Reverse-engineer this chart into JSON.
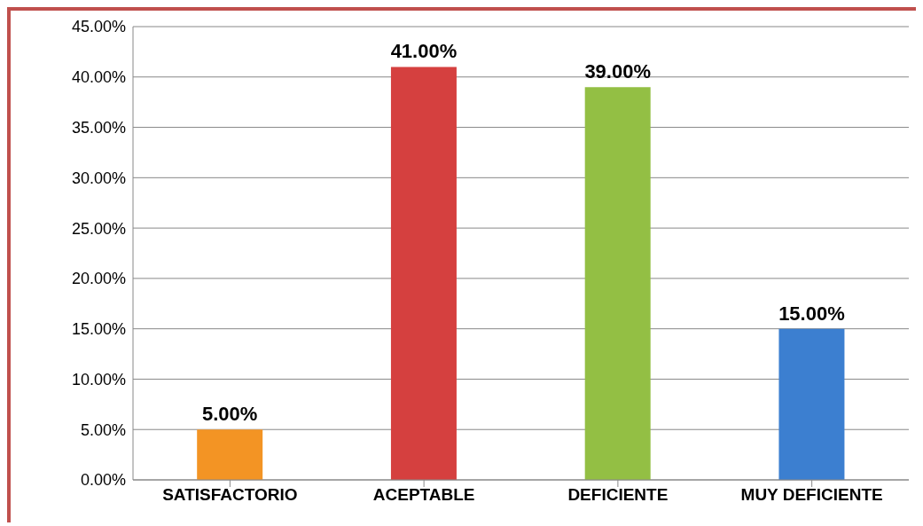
{
  "chart_data": {
    "type": "bar",
    "categories": [
      "SATISFACTORIO",
      "ACEPTABLE",
      "DEFICIENTE",
      "MUY DEFICIENTE"
    ],
    "values": [
      5,
      41,
      39,
      15
    ],
    "colors": [
      "#f39424",
      "#d5403f",
      "#93bf44",
      "#3c7fd0"
    ],
    "value_labels": [
      "5.00%",
      "41.00%",
      "39.00%",
      "15.00%"
    ],
    "ylim": [
      0,
      45
    ],
    "yticks": [
      {
        "value": 0,
        "label": "0.00%"
      },
      {
        "value": 5,
        "label": "5.00%"
      },
      {
        "value": 10,
        "label": "10.00%"
      },
      {
        "value": 15,
        "label": "15.00%"
      },
      {
        "value": 20,
        "label": "20.00%"
      },
      {
        "value": 25,
        "label": "25.00%"
      },
      {
        "value": 30,
        "label": "30.00%"
      },
      {
        "value": 35,
        "label": "35.00%"
      },
      {
        "value": 40,
        "label": "40.00%"
      },
      {
        "value": 45,
        "label": "45.00%"
      }
    ],
    "grid": "y"
  }
}
